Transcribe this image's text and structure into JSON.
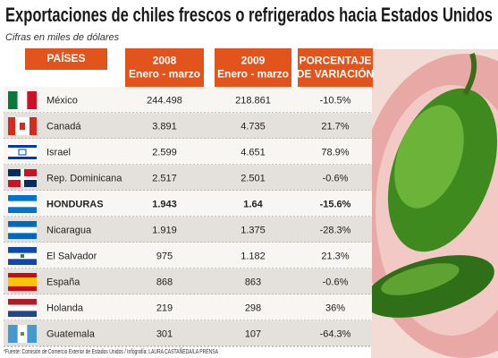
{
  "header": {
    "title": "Exportaciones de chiles frescos o refrigerados hacia Estados Unidos",
    "subtitle": "Cifras en miles de dólares"
  },
  "table": {
    "headers": [
      [
        "PAÍSES"
      ],
      [
        "2008",
        "Enero - marzo"
      ],
      [
        "2009",
        "Enero - marzo"
      ],
      [
        "PORCENTAJE",
        "DE VARIACIÓN"
      ]
    ],
    "rows": [
      [
        "México",
        "244.498",
        "218.861",
        "-10.5%"
      ],
      [
        "Canadá",
        "3.891",
        "4.735",
        "21.7%"
      ],
      [
        "Israel",
        "2.599",
        "4.651",
        "78.9%"
      ],
      [
        "Rep. Dominicana",
        "2.517",
        "2.501",
        "-0.6%"
      ],
      [
        "HONDURAS",
        "1.943",
        "1.64",
        "-15.6%"
      ],
      [
        "Nicaragua",
        "1.919",
        "1.375",
        "-28.3%"
      ],
      [
        "El Salvador",
        "975",
        "1.182",
        "21.3%"
      ],
      [
        "España",
        "868",
        "863",
        "-0.6%"
      ],
      [
        "Holanda",
        "219",
        "298",
        "36%"
      ],
      [
        "Guatemala",
        "301",
        "107",
        "-64.3%"
      ]
    ]
  },
  "footer": "*Fuente: Comisión de Comercio Exterior de Estados Unidos / Infografía: LAURA CASTAÑEDA/LA PRENSA"
}
